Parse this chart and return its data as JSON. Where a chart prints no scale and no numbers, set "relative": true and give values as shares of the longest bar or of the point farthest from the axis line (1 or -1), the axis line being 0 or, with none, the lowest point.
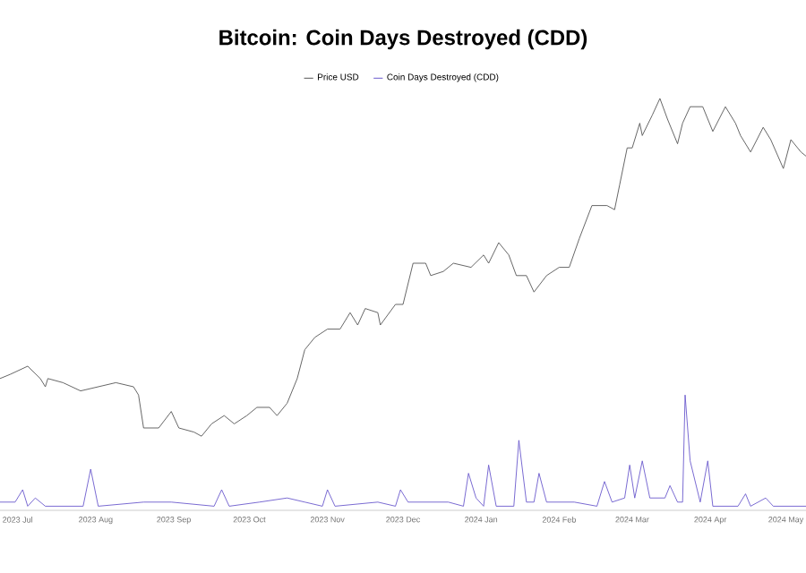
{
  "chart_data": {
    "type": "line",
    "title": "Bitcoin: Coin Days Destroyed (CDD)",
    "relative": true,
    "legend": "top",
    "xlim": [
      "2023-06-24",
      "2024-05-09"
    ],
    "xticks": [
      {
        "value": "2023-07-01",
        "label": "2023 Jul"
      },
      {
        "value": "2023-08-01",
        "label": "2023 Aug"
      },
      {
        "value": "2023-09-01",
        "label": "2023 Sep"
      },
      {
        "value": "2023-10-01",
        "label": "2023 Oct"
      },
      {
        "value": "2023-11-01",
        "label": "2023 Nov"
      },
      {
        "value": "2023-12-01",
        "label": "2023 Dec"
      },
      {
        "value": "2024-01-01",
        "label": "2024 Jan"
      },
      {
        "value": "2024-02-01",
        "label": "2024 Feb"
      },
      {
        "value": "2024-03-01",
        "label": "2024 Mar"
      },
      {
        "value": "2024-04-01",
        "label": "2024 Apr"
      },
      {
        "value": "2024-05-01",
        "label": "2024 May"
      }
    ],
    "series": [
      {
        "name": "Price USD",
        "color": "#555555",
        "x": [
          "2023-06-24",
          "2023-06-28",
          "2023-07-05",
          "2023-07-10",
          "2023-07-12",
          "2023-07-13",
          "2023-07-19",
          "2023-07-26",
          "2023-08-02",
          "2023-08-09",
          "2023-08-16",
          "2023-08-18",
          "2023-08-20",
          "2023-08-26",
          "2023-08-31",
          "2023-09-03",
          "2023-09-09",
          "2023-09-12",
          "2023-09-16",
          "2023-09-21",
          "2023-09-25",
          "2023-09-30",
          "2023-10-04",
          "2023-10-09",
          "2023-10-12",
          "2023-10-16",
          "2023-10-20",
          "2023-10-23",
          "2023-10-27",
          "2023-11-01",
          "2023-11-06",
          "2023-11-10",
          "2023-11-13",
          "2023-11-16",
          "2023-11-21",
          "2023-11-22",
          "2023-11-28",
          "2023-12-01",
          "2023-12-05",
          "2023-12-10",
          "2023-12-12",
          "2023-12-17",
          "2023-12-21",
          "2023-12-28",
          "2024-01-02",
          "2024-01-04",
          "2024-01-08",
          "2024-01-12",
          "2024-01-15",
          "2024-01-19",
          "2024-01-22",
          "2024-01-27",
          "2024-02-01",
          "2024-02-05",
          "2024-02-09",
          "2024-02-14",
          "2024-02-20",
          "2024-02-23",
          "2024-02-25",
          "2024-02-28",
          "2024-03-01",
          "2024-03-04",
          "2024-03-05",
          "2024-03-09",
          "2024-03-12",
          "2024-03-15",
          "2024-03-19",
          "2024-03-21",
          "2024-03-24",
          "2024-03-29",
          "2024-04-02",
          "2024-04-07",
          "2024-04-11",
          "2024-04-13",
          "2024-04-17",
          "2024-04-22",
          "2024-04-25",
          "2024-04-30",
          "2024-05-03",
          "2024-05-07",
          "2024-05-09"
        ],
        "values": [
          0.32,
          0.33,
          0.35,
          0.32,
          0.3,
          0.32,
          0.31,
          0.29,
          0.3,
          0.31,
          0.3,
          0.28,
          0.2,
          0.2,
          0.24,
          0.2,
          0.19,
          0.18,
          0.21,
          0.23,
          0.21,
          0.23,
          0.25,
          0.25,
          0.23,
          0.26,
          0.32,
          0.39,
          0.42,
          0.44,
          0.44,
          0.48,
          0.45,
          0.49,
          0.48,
          0.45,
          0.5,
          0.5,
          0.6,
          0.6,
          0.57,
          0.58,
          0.6,
          0.59,
          0.62,
          0.6,
          0.65,
          0.62,
          0.57,
          0.57,
          0.53,
          0.57,
          0.59,
          0.59,
          0.66,
          0.74,
          0.74,
          0.73,
          0.79,
          0.88,
          0.88,
          0.94,
          0.91,
          0.96,
          1,
          0.95,
          0.89,
          0.94,
          0.98,
          0.98,
          0.92,
          0.98,
          0.94,
          0.91,
          0.87,
          0.93,
          0.9,
          0.83,
          0.9,
          0.87,
          0.86
        ]
      },
      {
        "name": "Coin Days Destroyed (CDD)",
        "color": "#6a5acd",
        "x": [
          "2023-06-24",
          "2023-06-30",
          "2023-07-03",
          "2023-07-05",
          "2023-07-08",
          "2023-07-12",
          "2023-07-27",
          "2023-07-30",
          "2023-08-02",
          "2023-08-20",
          "2023-08-31",
          "2023-09-17",
          "2023-09-20",
          "2023-09-23",
          "2023-10-05",
          "2023-10-16",
          "2023-10-23",
          "2023-10-30",
          "2023-11-01",
          "2023-11-04",
          "2023-11-21",
          "2023-11-28",
          "2023-11-30",
          "2023-12-03",
          "2023-12-19",
          "2023-12-25",
          "2023-12-27",
          "2023-12-30",
          "2024-01-02",
          "2024-01-04",
          "2024-01-07",
          "2024-01-14",
          "2024-01-16",
          "2024-01-19",
          "2024-01-22",
          "2024-01-24",
          "2024-01-27",
          "2024-02-07",
          "2024-02-16",
          "2024-02-19",
          "2024-02-22",
          "2024-02-27",
          "2024-02-29",
          "2024-03-02",
          "2024-03-05",
          "2024-03-08",
          "2024-03-14",
          "2024-03-16",
          "2024-03-19",
          "2024-03-21",
          "2024-03-22",
          "2024-03-24",
          "2024-03-26",
          "2024-03-28",
          "2024-03-31",
          "2024-04-02",
          "2024-04-12",
          "2024-04-15",
          "2024-04-17",
          "2024-04-23",
          "2024-04-26",
          "2024-05-09"
        ],
        "values": [
          0.02,
          0.02,
          0.05,
          0.01,
          0.03,
          0.01,
          0.01,
          0.1,
          0.01,
          0.02,
          0.02,
          0.01,
          0.05,
          0.01,
          0.02,
          0.03,
          0.02,
          0.01,
          0.05,
          0.01,
          0.02,
          0.01,
          0.05,
          0.02,
          0.02,
          0.01,
          0.09,
          0.03,
          0.01,
          0.11,
          0.01,
          0.01,
          0.17,
          0.02,
          0.02,
          0.09,
          0.02,
          0.02,
          0.01,
          0.07,
          0.02,
          0.03,
          0.11,
          0.03,
          0.12,
          0.03,
          0.03,
          0.06,
          0.02,
          0.02,
          0.28,
          0.12,
          0.07,
          0.02,
          0.12,
          0.01,
          0.01,
          0.04,
          0.01,
          0.03,
          0.01,
          0.01
        ]
      }
    ]
  }
}
